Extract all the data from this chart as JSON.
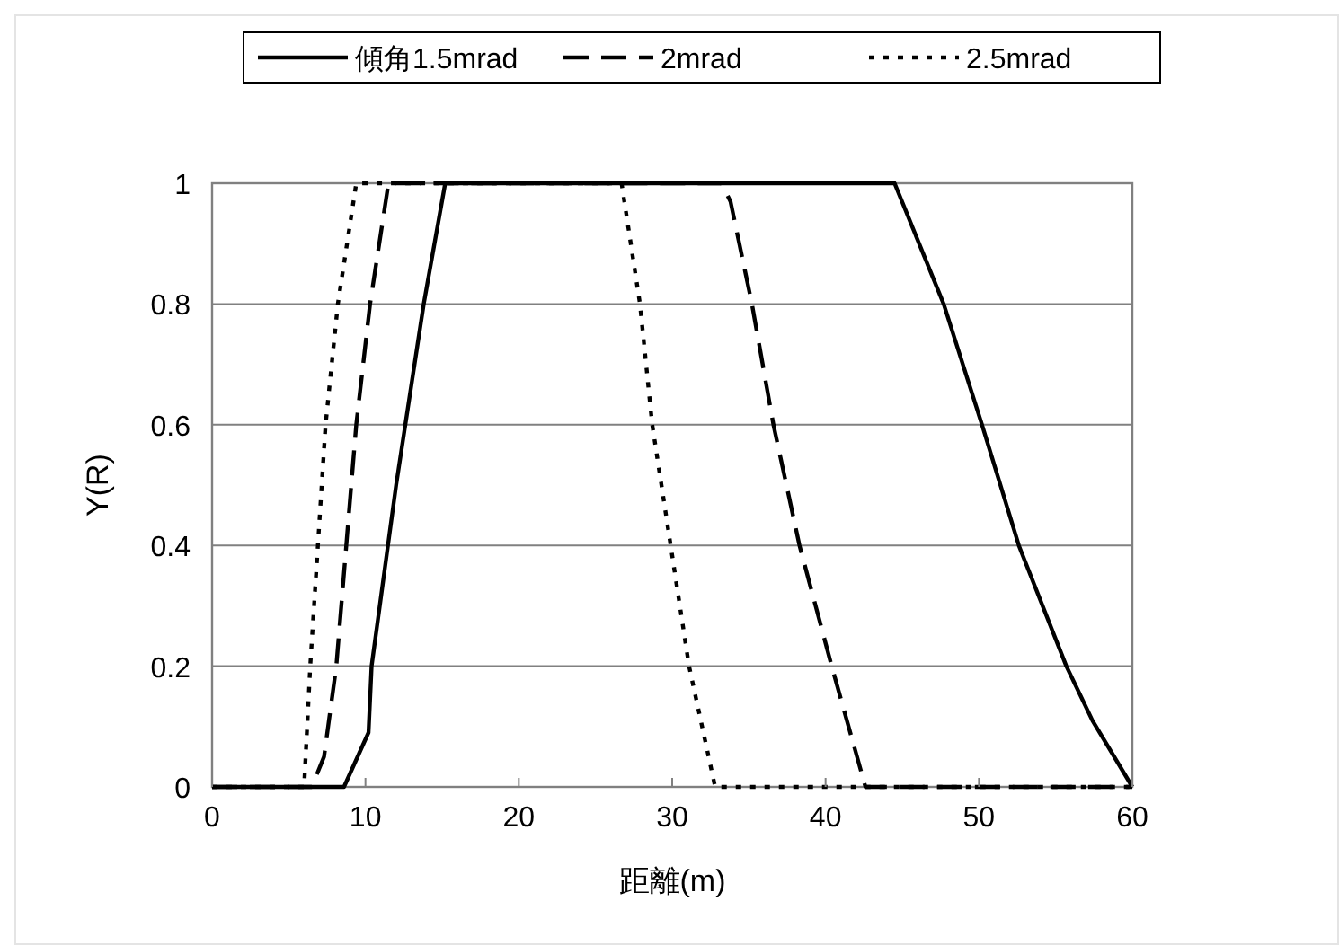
{
  "chart_data": {
    "type": "line",
    "xlabel": "距離(m)",
    "ylabel": "Y(R)",
    "xlim": [
      0,
      60
    ],
    "ylim": [
      0,
      1
    ],
    "xticks": [
      0,
      10,
      20,
      30,
      40,
      50,
      60
    ],
    "yticks": [
      0,
      {
        "value": 0.2,
        "label": "0.2"
      },
      {
        "value": 0.4,
        "label": "0.4"
      },
      {
        "value": 0.6,
        "label": "0.6"
      },
      {
        "value": 0.8,
        "label": "0.8"
      },
      1
    ],
    "grid": "y",
    "legend": "top",
    "marker": "none",
    "series": [
      {
        "name": "傾角1.5mrad",
        "color": "#000000",
        "line_style": "solid",
        "x": [
          0,
          8.6,
          10.2,
          10.4,
          12,
          13.8,
          15.2,
          44.5,
          47.7,
          50.2,
          52.6,
          55.7,
          57.4,
          60
        ],
        "values": [
          0,
          0,
          0.09,
          0.2,
          0.5,
          0.8,
          1,
          1,
          0.8,
          0.6,
          0.4,
          0.2,
          0.11,
          0
        ]
      },
      {
        "name": "2mrad",
        "color": "#000000",
        "line_style": "dashed",
        "x": [
          0,
          6.5,
          7.3,
          8.1,
          9.4,
          10.3,
          11.5,
          33.2,
          33.8,
          35.2,
          36.6,
          38.3,
          40.4,
          42.6,
          60
        ],
        "values": [
          0,
          0,
          0.05,
          0.2,
          0.6,
          0.8,
          1,
          1,
          0.97,
          0.8,
          0.6,
          0.4,
          0.2,
          0,
          0
        ]
      },
      {
        "name": "2.5mrad",
        "color": "#000000",
        "line_style": "dotted",
        "x": [
          0,
          6.0,
          6.4,
          7.4,
          8.2,
          9.4,
          26.7,
          27.9,
          28.7,
          29.9,
          31.1,
          32.8,
          60
        ],
        "values": [
          0,
          0,
          0.2,
          0.6,
          0.8,
          1,
          1,
          0.8,
          0.6,
          0.4,
          0.2,
          0,
          0
        ]
      }
    ]
  }
}
